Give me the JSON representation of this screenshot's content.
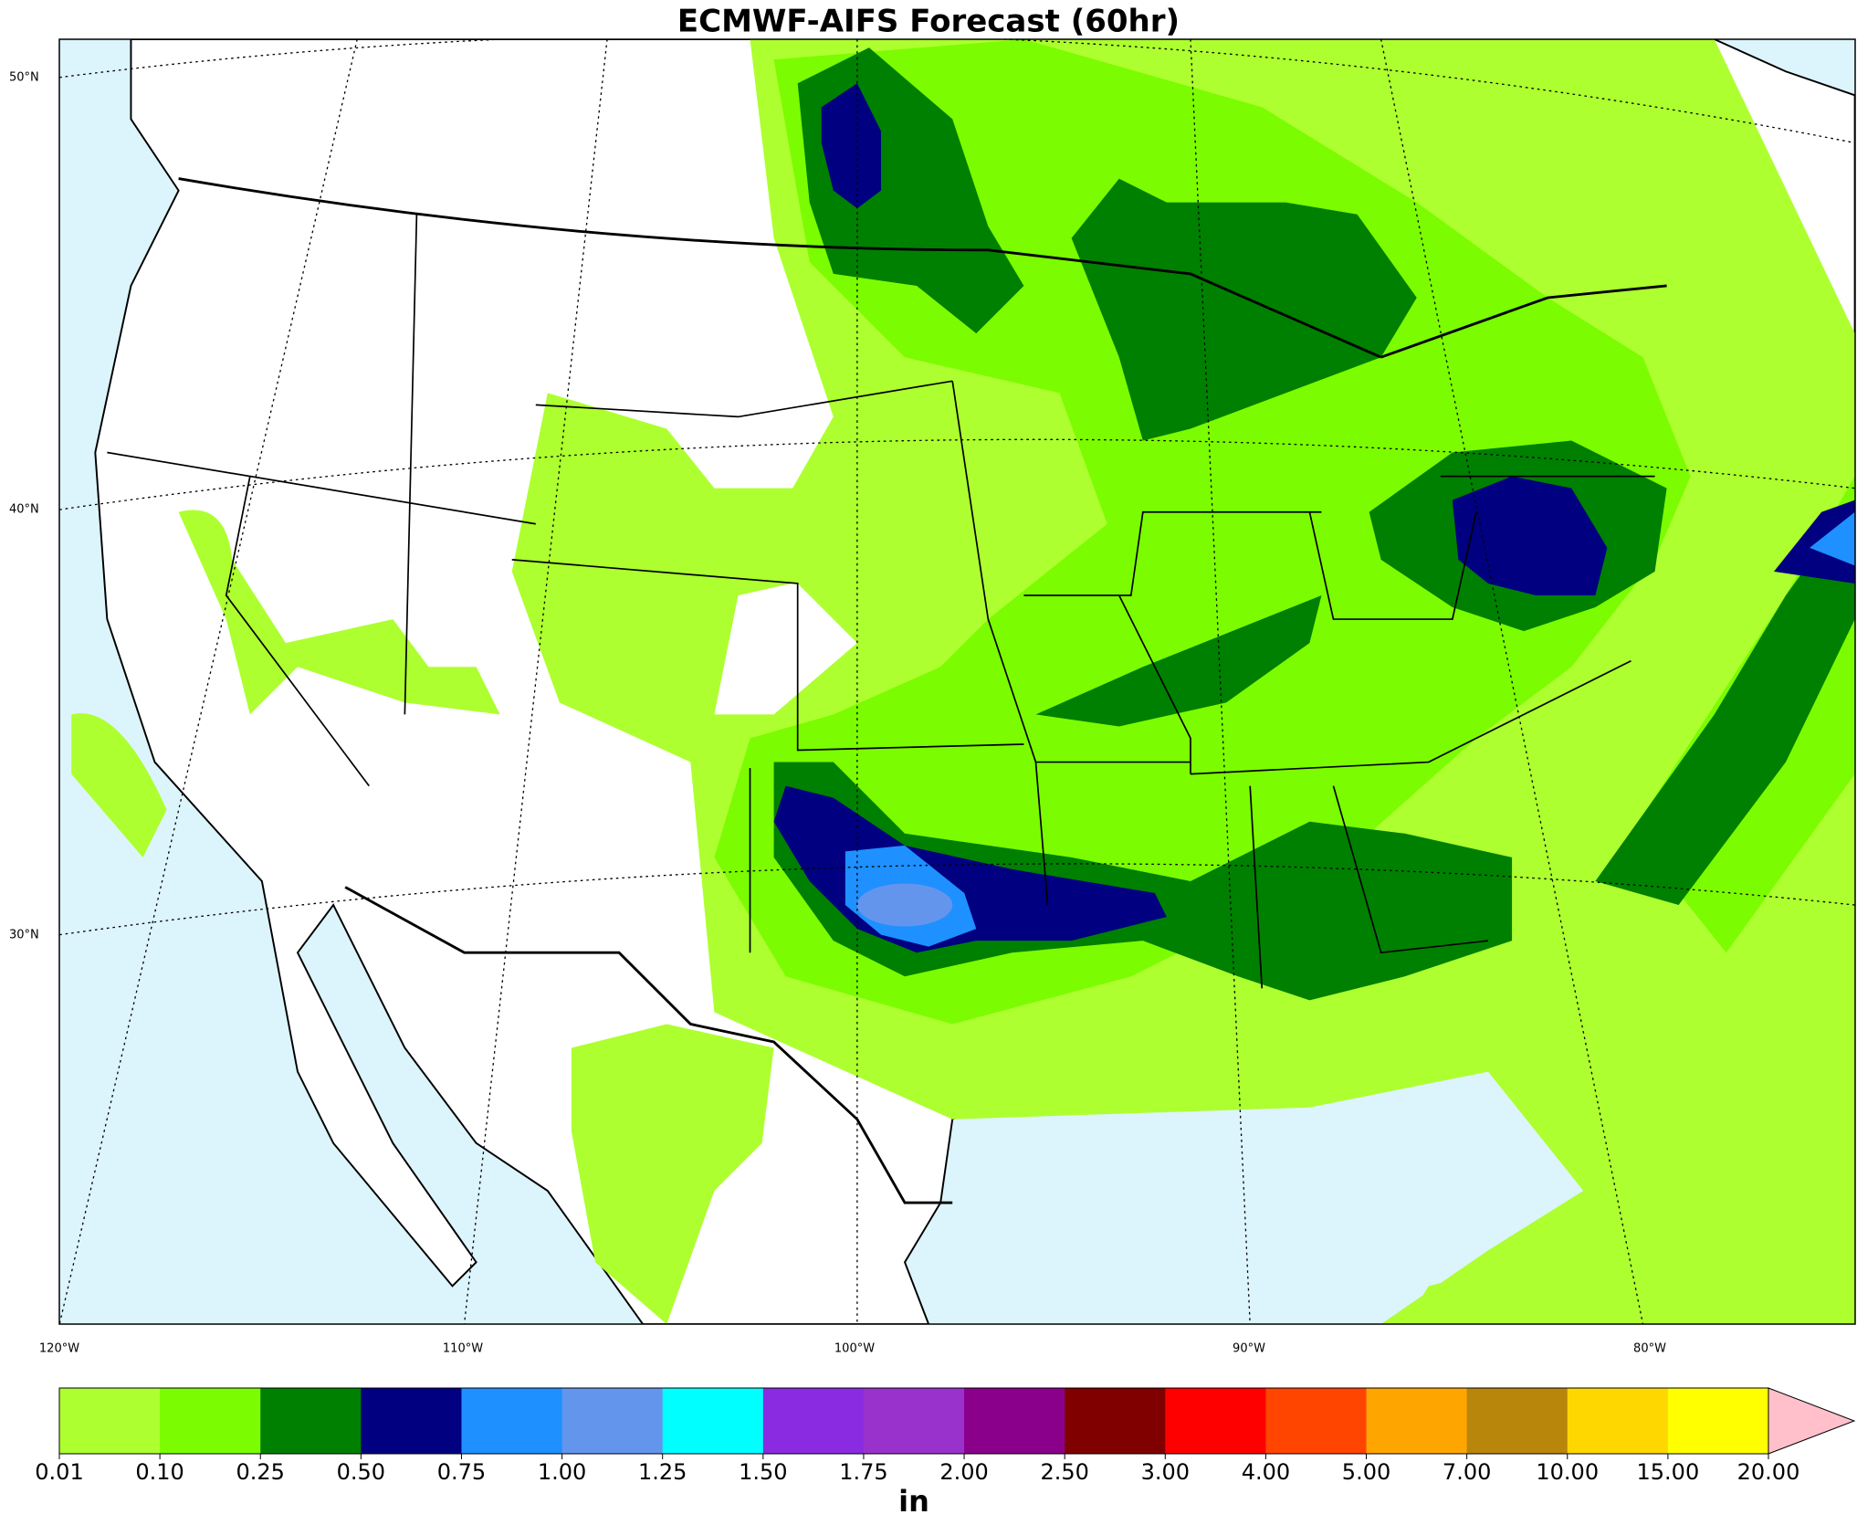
{
  "map": {
    "title": "ECMWF-AIFS Forecast (60hr)",
    "lat_labels": [
      "50°N",
      "40°N",
      "30°N"
    ],
    "lon_labels": [
      "120°W",
      "110°W",
      "100°W",
      "90°W",
      "80°W"
    ],
    "colorbar": {
      "label": "in",
      "levels": [
        0.01,
        {
          "value": 0.1,
          "label": "0.10"
        },
        0.25,
        {
          "value": 0.5,
          "label": "0.50"
        },
        0.75,
        {
          "value": 1,
          "label": "1.00"
        },
        1.25,
        {
          "value": 1.5,
          "label": "1.50"
        },
        1.75,
        {
          "value": 2,
          "label": "2.00"
        },
        {
          "value": 2.5,
          "label": "2.50"
        },
        {
          "value": 3,
          "label": "3.00"
        },
        {
          "value": 4,
          "label": "4.00"
        },
        {
          "value": 5,
          "label": "5.00"
        },
        {
          "value": 7,
          "label": "7.00"
        },
        {
          "value": 10,
          "label": "10.00"
        },
        {
          "value": 15,
          "label": "15.00"
        },
        {
          "value": 20,
          "label": "20.00"
        }
      ],
      "colors": [
        "#adff2f",
        "#7cfc00",
        "#008000",
        "#000080",
        "#1e90ff",
        "#6495ed",
        "#00ffff",
        "#8a2be2",
        "#9932cc",
        "#8b008b",
        "#800000",
        "#ff0000",
        "#ff4500",
        "#ffa500",
        "#b8860b",
        "#ffd700",
        "#ffff00"
      ],
      "over_color": "#ffc0cb"
    }
  }
}
